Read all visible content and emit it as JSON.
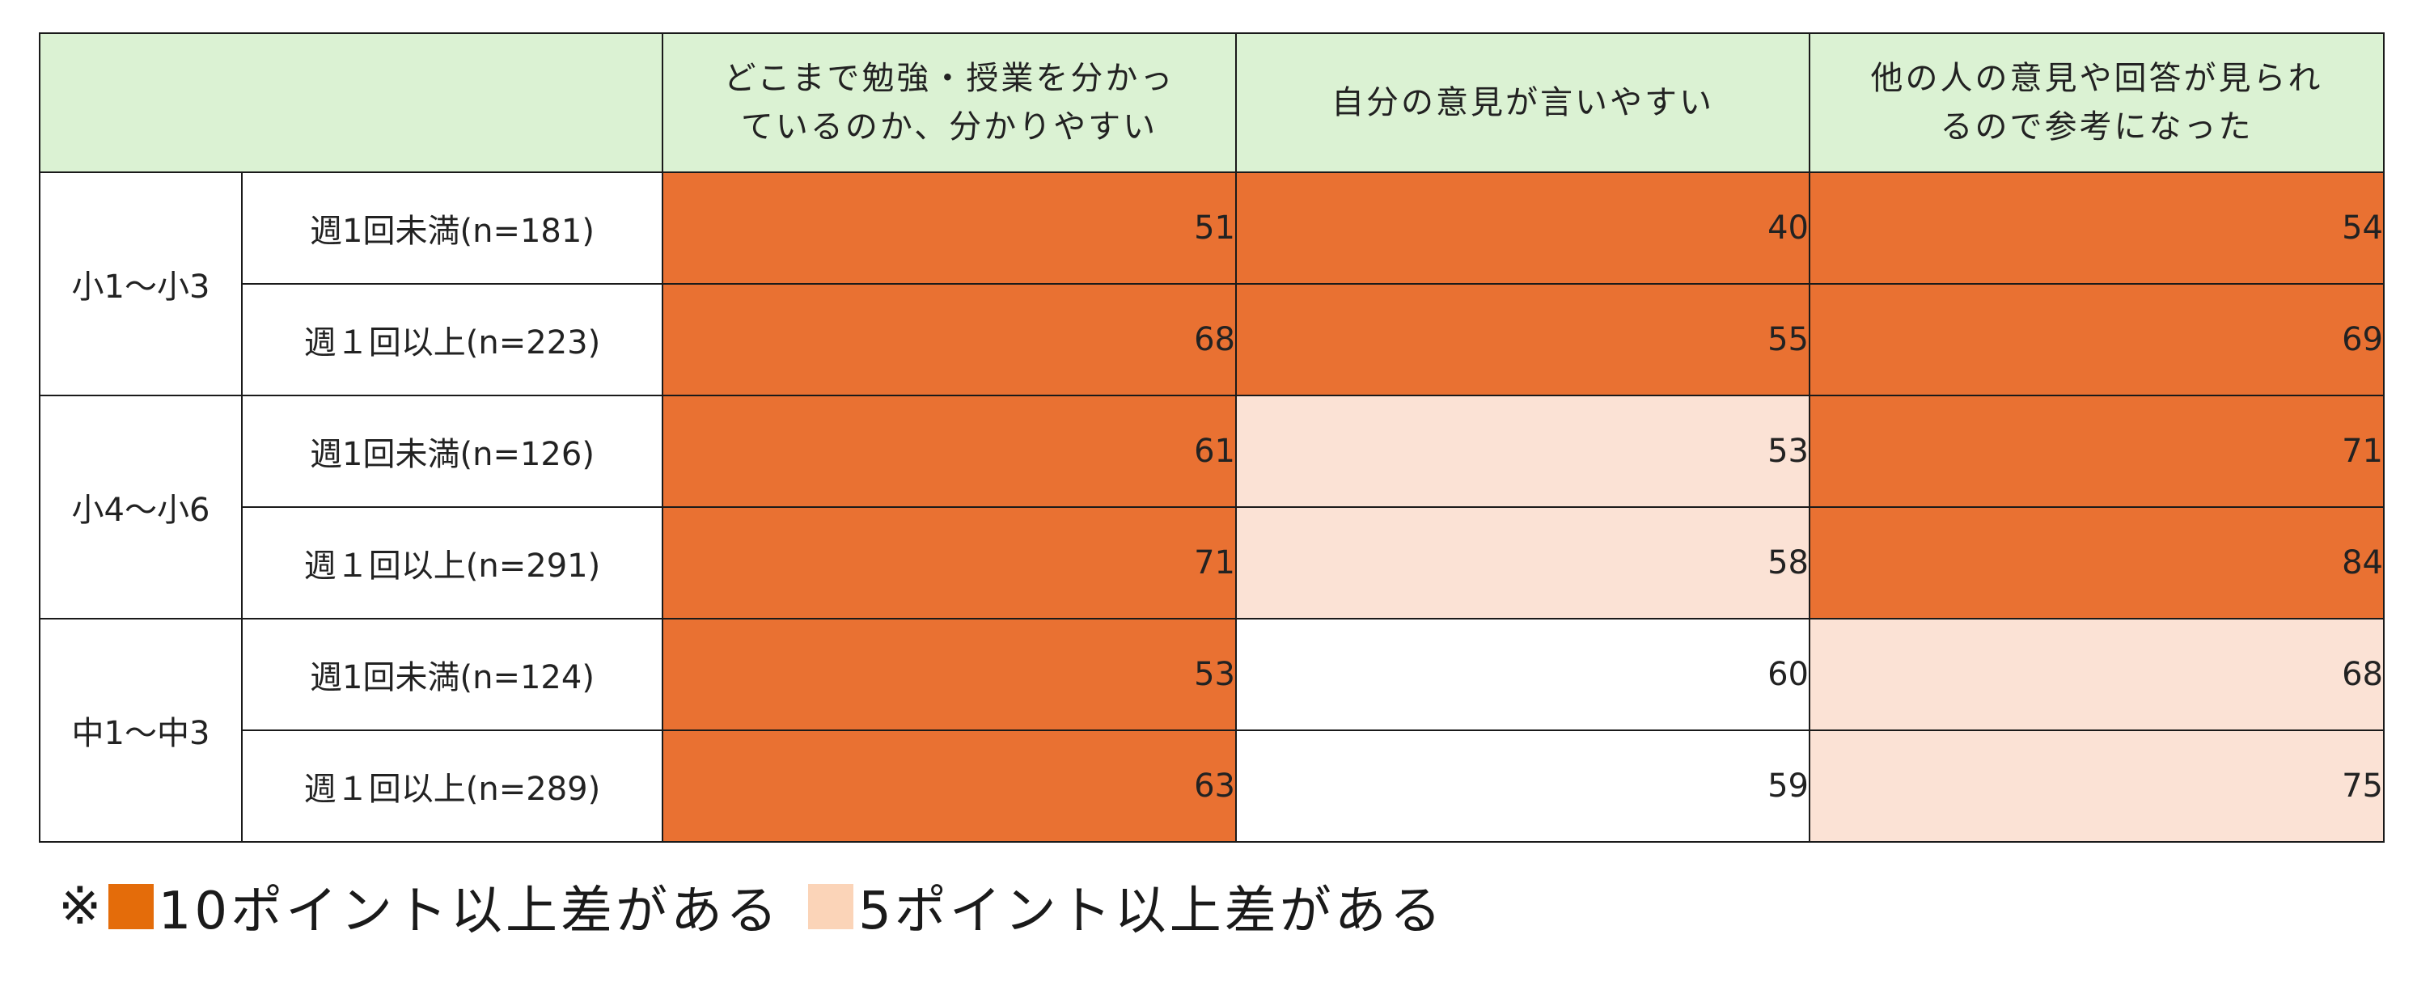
{
  "chart_data": {
    "type": "table",
    "columns": [
      "どこまで勉強・授業を分かっ\nているのか、分かりやすい",
      "自分の意見が言いやすい",
      "他の人の意見や回答が見られ\nるので参考になった"
    ],
    "groups": [
      {
        "label": "小1～小3",
        "rows": [
          {
            "label": "週1回未満(n=181)",
            "values": [
              51,
              40,
              54
            ],
            "highlight": [
              "strong",
              "strong",
              "strong"
            ]
          },
          {
            "label": "週１回以上(n=223)",
            "values": [
              68,
              55,
              69
            ],
            "highlight": [
              "strong",
              "strong",
              "strong"
            ]
          }
        ]
      },
      {
        "label": "小4～小6",
        "rows": [
          {
            "label": "週1回未満(n=126)",
            "values": [
              61,
              53,
              71
            ],
            "highlight": [
              "strong",
              "mild",
              "strong"
            ]
          },
          {
            "label": "週１回以上(n=291)",
            "values": [
              71,
              58,
              84
            ],
            "highlight": [
              "strong",
              "mild",
              "strong"
            ]
          }
        ]
      },
      {
        "label": "中1～中3",
        "rows": [
          {
            "label": "週1回未満(n=124)",
            "values": [
              53,
              60,
              68
            ],
            "highlight": [
              "strong",
              "none",
              "mild"
            ]
          },
          {
            "label": "週１回以上(n=289)",
            "values": [
              63,
              59,
              75
            ],
            "highlight": [
              "strong",
              "none",
              "mild"
            ]
          }
        ]
      }
    ],
    "colors": {
      "header": "#dbf2d3",
      "strong": "#e97132",
      "mild": "#fbe2d5",
      "none": "#ffffff"
    }
  },
  "legend": {
    "mark": "※",
    "strong_label": "10ポイント以上差がある",
    "mild_label": "5ポイント以上差がある",
    "strong_color": "#e46c0a",
    "mild_color": "#fbd4b8"
  }
}
